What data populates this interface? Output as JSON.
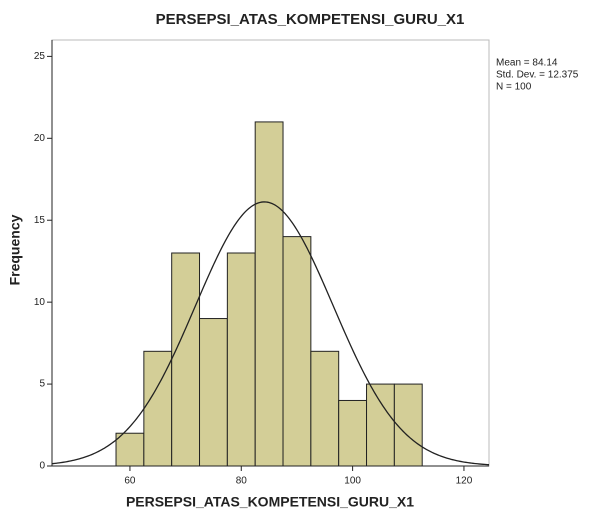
{
  "chart_data": {
    "type": "histogram",
    "title": "PERSEPSI_ATAS_KOMPETENSI_GURU_X1",
    "x_label": "PERSEPSI_ATAS_KOMPETENSI_GURU_X1",
    "y_label": "Frequency",
    "bins": [
      57.5,
      62.5,
      67.5,
      72.5,
      77.5,
      82.5,
      87.5,
      92.5,
      97.5,
      102.5,
      107.5,
      112.5
    ],
    "values": [
      2,
      7,
      13,
      9,
      13,
      21,
      14,
      7,
      4,
      5,
      5
    ],
    "color": "#d3ce97",
    "curve_color": "#222222",
    "xlim": [
      46,
      124.5
    ],
    "xticks": [
      60,
      80,
      100,
      120
    ],
    "ylim": [
      0,
      26
    ],
    "yticks": [
      0,
      5,
      10,
      15,
      20,
      25
    ],
    "stats": {
      "mean": {
        "value": 84.14,
        "label": "Mean = 84.14"
      },
      "sd": {
        "value": 12.375,
        "label": "Std. Dev. = 12.375"
      },
      "n": {
        "value": 100,
        "label": "N = 100"
      }
    }
  }
}
